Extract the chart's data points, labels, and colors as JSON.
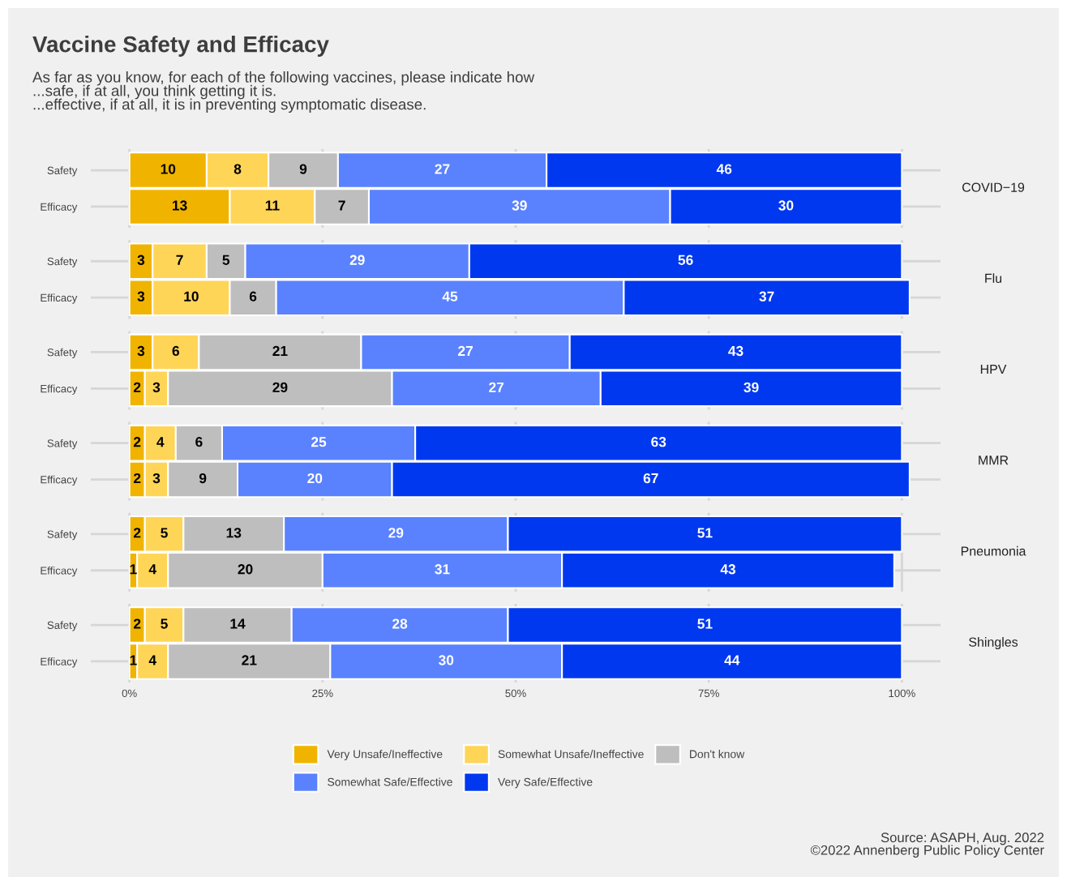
{
  "chart_data": [
    {
      "type": "bar",
      "orientation": "horizontal",
      "stacked": true,
      "title": "Vaccine Safety and Efficacy",
      "subtitle": "As far as you know, for each of the following vaccines, please indicate how\n...safe, if at all, you think getting it is.\n...effective, if at all, it is in preventing symptomatic disease.",
      "y2label": "COVID−19",
      "categories": [
        "Safety",
        "Efficacy"
      ],
      "xlim": [
        -5,
        105
      ],
      "xticks": [
        {
          "value": 0,
          "label": null
        },
        {
          "value": 25,
          "label": null
        },
        {
          "value": 50,
          "label": null
        },
        {
          "value": 75,
          "label": null
        },
        {
          "value": 100,
          "label": null
        }
      ],
      "tick_labels": "y",
      "grid": true,
      "data_labels": true,
      "legend": "bottom",
      "series": [
        {
          "name": "Very Unsafe/Ineffective",
          "color": "#f0b400",
          "values": [
            10,
            13
          ]
        },
        {
          "name": "Somewhat Unsafe/Ineffective",
          "color": "#ffd558",
          "values": [
            8,
            11
          ]
        },
        {
          "name": "Don't know",
          "color": "#bebebe",
          "values": [
            9,
            7
          ]
        },
        {
          "name": "Somewhat Safe/Effective",
          "color": "#5a82ff",
          "values": [
            27,
            39
          ]
        },
        {
          "name": "Very Safe/Effective",
          "color": "#0038f0",
          "values": [
            46,
            30
          ]
        }
      ]
    },
    {
      "type": "bar",
      "orientation": "horizontal",
      "stacked": true,
      "y2label": "Flu",
      "categories": [
        "Safety",
        "Efficacy"
      ],
      "xlim": [
        -5,
        105
      ],
      "xticks": [
        {
          "value": 0,
          "label": null
        },
        {
          "value": 25,
          "label": null
        },
        {
          "value": 50,
          "label": null
        },
        {
          "value": 75,
          "label": null
        },
        {
          "value": 100,
          "label": null
        }
      ],
      "tick_labels": "y",
      "grid": true,
      "data_labels": true,
      "series": [
        {
          "color": "#f0b400",
          "values": [
            3,
            3
          ]
        },
        {
          "color": "#ffd558",
          "values": [
            7,
            10
          ]
        },
        {
          "color": "#bebebe",
          "values": [
            5,
            6
          ]
        },
        {
          "color": "#5a82ff",
          "values": [
            29,
            45
          ]
        },
        {
          "color": "#0038f0",
          "values": [
            56,
            37
          ]
        }
      ]
    },
    {
      "type": "bar",
      "orientation": "horizontal",
      "stacked": true,
      "y2label": "HPV",
      "categories": [
        "Safety",
        "Efficacy"
      ],
      "xlim": [
        -5,
        105
      ],
      "xticks": [
        {
          "value": 0,
          "label": null
        },
        {
          "value": 25,
          "label": null
        },
        {
          "value": 50,
          "label": null
        },
        {
          "value": 75,
          "label": null
        },
        {
          "value": 100,
          "label": null
        }
      ],
      "tick_labels": "y",
      "grid": true,
      "data_labels": true,
      "series": [
        {
          "color": "#f0b400",
          "values": [
            3,
            2
          ]
        },
        {
          "color": "#ffd558",
          "values": [
            6,
            3
          ]
        },
        {
          "color": "#bebebe",
          "values": [
            21,
            29
          ]
        },
        {
          "color": "#5a82ff",
          "values": [
            27,
            27
          ]
        },
        {
          "color": "#0038f0",
          "values": [
            43,
            39
          ]
        }
      ]
    },
    {
      "type": "bar",
      "orientation": "horizontal",
      "stacked": true,
      "y2label": "MMR",
      "categories": [
        "Safety",
        "Efficacy"
      ],
      "xlim": [
        -5,
        105
      ],
      "xticks": [
        {
          "value": 0,
          "label": null
        },
        {
          "value": 25,
          "label": null
        },
        {
          "value": 50,
          "label": null
        },
        {
          "value": 75,
          "label": null
        },
        {
          "value": 100,
          "label": null
        }
      ],
      "tick_labels": "y",
      "grid": true,
      "data_labels": true,
      "series": [
        {
          "color": "#f0b400",
          "values": [
            2,
            2
          ]
        },
        {
          "color": "#ffd558",
          "values": [
            4,
            3
          ]
        },
        {
          "color": "#bebebe",
          "values": [
            6,
            9
          ]
        },
        {
          "color": "#5a82ff",
          "values": [
            25,
            20
          ]
        },
        {
          "color": "#0038f0",
          "values": [
            63,
            67
          ]
        }
      ]
    },
    {
      "type": "bar",
      "orientation": "horizontal",
      "stacked": true,
      "y2label": "Pneumonia",
      "categories": [
        "Safety",
        "Efficacy"
      ],
      "xlim": [
        -5,
        105
      ],
      "xticks": [
        {
          "value": 0,
          "label": null
        },
        {
          "value": 25,
          "label": null
        },
        {
          "value": 50,
          "label": null
        },
        {
          "value": 75,
          "label": null
        },
        {
          "value": 100,
          "label": null
        }
      ],
      "tick_labels": "y",
      "grid": true,
      "data_labels": true,
      "series": [
        {
          "color": "#f0b400",
          "values": [
            2,
            1
          ]
        },
        {
          "color": "#ffd558",
          "values": [
            5,
            4
          ]
        },
        {
          "color": "#bebebe",
          "values": [
            13,
            20
          ]
        },
        {
          "color": "#5a82ff",
          "values": [
            29,
            31
          ]
        },
        {
          "color": "#0038f0",
          "values": [
            51,
            43
          ]
        }
      ]
    },
    {
      "type": "bar",
      "orientation": "horizontal",
      "stacked": true,
      "y2label": "Shingles",
      "categories": [
        "Safety",
        "Efficacy"
      ],
      "xlim": [
        -5,
        105
      ],
      "xticks": [
        {
          "value": 0,
          "label": "0%"
        },
        {
          "value": 25,
          "label": "25%"
        },
        {
          "value": 50,
          "label": "50%"
        },
        {
          "value": 75,
          "label": "75%"
        },
        {
          "value": 100,
          "label": "100%"
        }
      ],
      "grid": true,
      "data_labels": true,
      "annotations": [
        "Source: ASAPH, Aug. 2022\n©2022 Annenberg Public Policy Center"
      ],
      "series": [
        {
          "color": "#f0b400",
          "values": [
            2,
            1
          ]
        },
        {
          "color": "#ffd558",
          "values": [
            5,
            4
          ]
        },
        {
          "color": "#bebebe",
          "values": [
            14,
            21
          ]
        },
        {
          "color": "#5a82ff",
          "values": [
            28,
            30
          ]
        },
        {
          "color": "#0038f0",
          "values": [
            51,
            44
          ]
        }
      ]
    }
  ]
}
